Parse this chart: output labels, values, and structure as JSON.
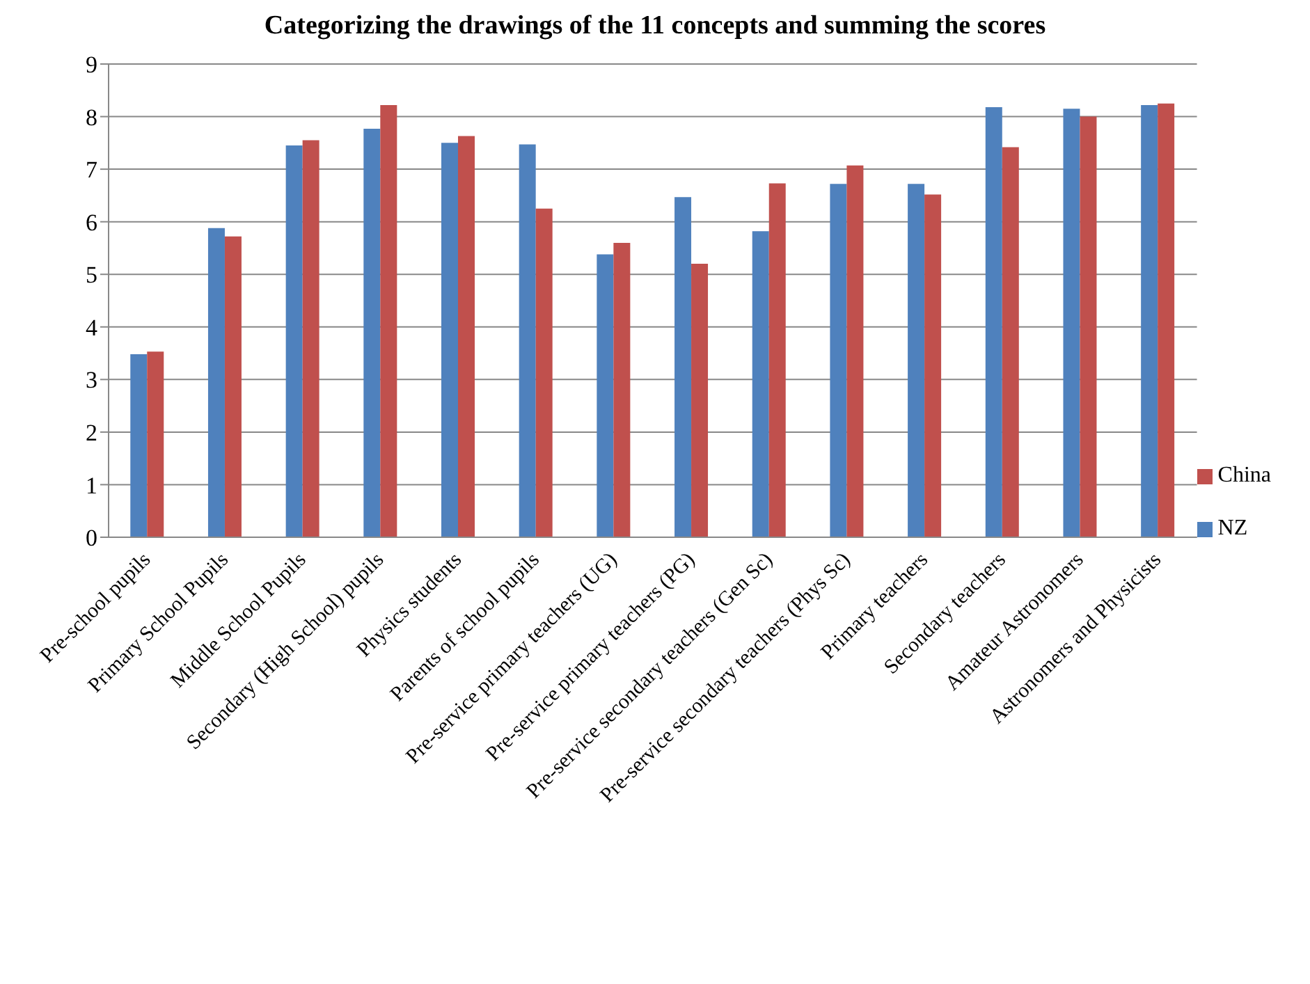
{
  "chart_data": {
    "type": "bar",
    "title": "Categorizing the drawings of the 11 concepts and summing the scores",
    "categories": [
      "Pre-school pupils",
      "Primary School Pupils",
      "Middle School Pupils",
      "Secondary (High School) pupils",
      "Physics students",
      "Parents of school pupils",
      "Pre-service primary teachers (UG)",
      "Pre-service primary teachers (PG)",
      "Pre-service secondary teachers (Gen Sc)",
      "Pre-service secondary teachers (Phys Sc)",
      "Primary teachers",
      "Secondary teachers",
      "Amateur Astronomers",
      "Astronomers and Physicists"
    ],
    "series": [
      {
        "name": "NZ",
        "color": "#4f81bd",
        "values": [
          3.48,
          5.88,
          7.45,
          7.77,
          7.5,
          7.47,
          5.38,
          6.47,
          5.82,
          6.72,
          6.72,
          8.18,
          8.15,
          8.22
        ]
      },
      {
        "name": "China",
        "color": "#c0504d",
        "values": [
          3.53,
          5.72,
          7.55,
          8.22,
          7.63,
          6.25,
          5.6,
          5.2,
          6.73,
          7.07,
          6.52,
          7.42,
          8.0,
          8.25
        ]
      }
    ],
    "ylim": [
      0,
      9
    ],
    "yticks": [
      0,
      1,
      2,
      3,
      4,
      5,
      6,
      7,
      8,
      9
    ],
    "grid": "y",
    "legend": "right"
  }
}
